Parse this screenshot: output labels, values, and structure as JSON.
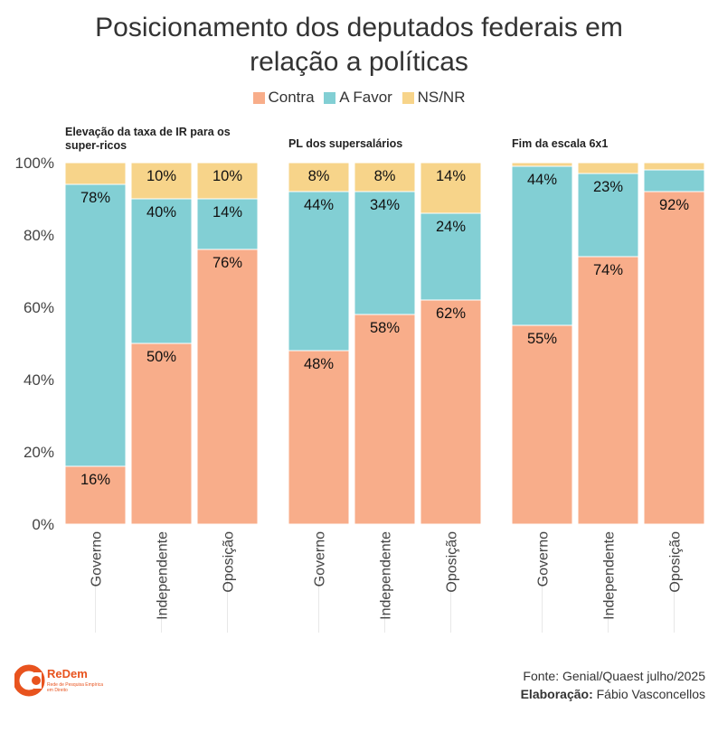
{
  "title_line1": "Posicionamento dos deputados federais em",
  "title_line2": "relação a políticas",
  "legend": [
    {
      "label": "Contra",
      "color": "#f8ad8a"
    },
    {
      "label": "A Favor",
      "color": "#82cfd4"
    },
    {
      "label": "NS/NR",
      "color": "#f7d48a"
    }
  ],
  "chart_data": {
    "type": "bar",
    "stacked": "percent",
    "ylim": [
      0,
      100
    ],
    "yticks": [
      "0%",
      "20%",
      "40%",
      "60%",
      "80%",
      "100%"
    ],
    "categories": [
      "Governo",
      "Independente",
      "Oposição"
    ],
    "panels": [
      {
        "title_lines": [
          "Elevação da taxa de IR para os",
          "super-ricos"
        ],
        "series": [
          {
            "name": "Contra",
            "values": [
              16,
              50,
              76
            ],
            "labels": [
              "16%",
              "50%",
              "76%"
            ]
          },
          {
            "name": "A Favor",
            "values": [
              78,
              40,
              14
            ],
            "labels": [
              "78%",
              "40%",
              "14%"
            ]
          },
          {
            "name": "NS/NR",
            "values": [
              6,
              10,
              10
            ],
            "labels": [
              "",
              "10%",
              "10%"
            ]
          }
        ]
      },
      {
        "title_lines": [
          "PL dos supersalários"
        ],
        "series": [
          {
            "name": "Contra",
            "values": [
              48,
              58,
              62
            ],
            "labels": [
              "48%",
              "58%",
              "62%"
            ]
          },
          {
            "name": "A Favor",
            "values": [
              44,
              34,
              24
            ],
            "labels": [
              "44%",
              "34%",
              "24%"
            ]
          },
          {
            "name": "NS/NR",
            "values": [
              8,
              8,
              14
            ],
            "labels": [
              "8%",
              "8%",
              "14%"
            ]
          }
        ]
      },
      {
        "title_lines": [
          "Fim da escala 6x1"
        ],
        "series": [
          {
            "name": "Contra",
            "values": [
              55,
              74,
              92
            ],
            "labels": [
              "55%",
              "74%",
              "92%"
            ]
          },
          {
            "name": "A Favor",
            "values": [
              44,
              23,
              6
            ],
            "labels": [
              "44%",
              "23%",
              ""
            ]
          },
          {
            "name": "NS/NR",
            "values": [
              1,
              3,
              2
            ],
            "labels": [
              "",
              "",
              ""
            ]
          }
        ]
      }
    ]
  },
  "logo": {
    "name": "ReDem",
    "subtitle": "Rede de Pesquisa Empírica em Direito"
  },
  "footer": {
    "source": "Fonte: Genial/Quaest julho/2025",
    "credit_label": "Elaboração:",
    "credit_name": "Fábio Vasconcellos"
  }
}
